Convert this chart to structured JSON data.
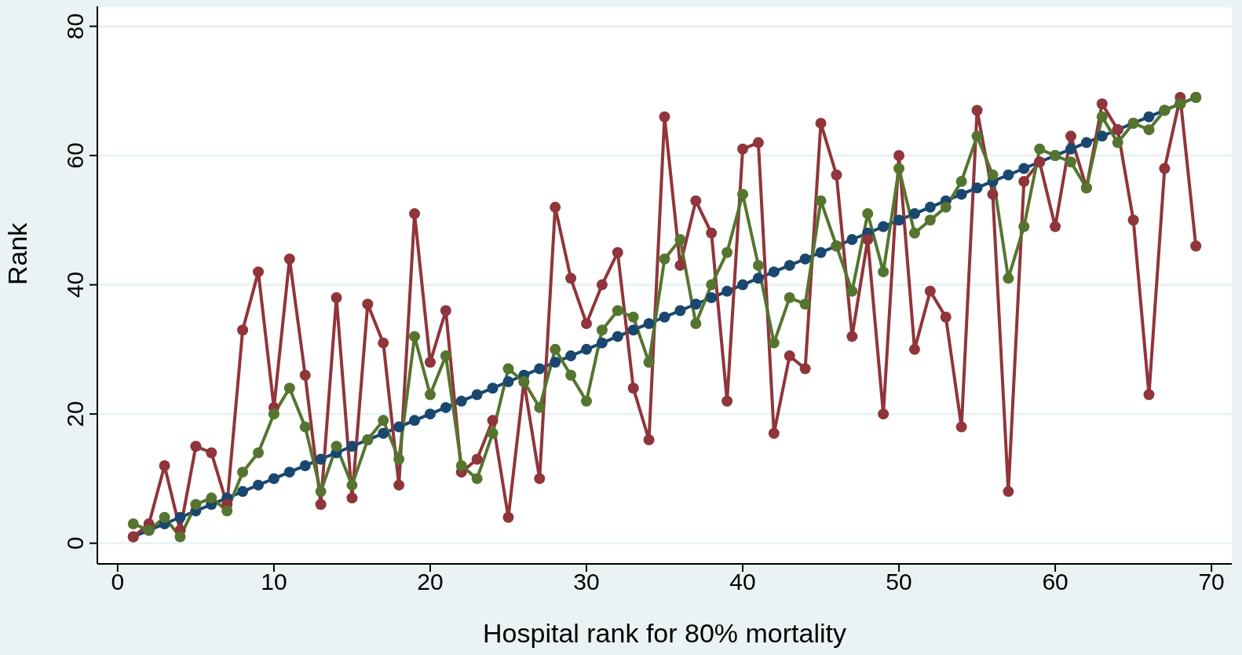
{
  "chart_data": {
    "type": "line",
    "xlabel": "Hospital rank for 80% mortality",
    "ylabel": "Rank",
    "x": [
      1,
      2,
      3,
      4,
      5,
      6,
      7,
      8,
      9,
      10,
      11,
      12,
      13,
      14,
      15,
      16,
      17,
      18,
      19,
      20,
      21,
      22,
      23,
      24,
      25,
      26,
      27,
      28,
      29,
      30,
      31,
      32,
      33,
      34,
      35,
      36,
      37,
      38,
      39,
      40,
      41,
      42,
      43,
      44,
      45,
      46,
      47,
      48,
      49,
      50,
      51,
      52,
      53,
      54,
      55,
      56,
      57,
      58,
      59,
      60,
      61,
      62,
      63,
      64,
      65,
      66,
      67,
      68,
      69
    ],
    "series": [
      {
        "color": "#1a476f",
        "values": [
          1,
          2,
          3,
          4,
          5,
          6,
          7,
          8,
          9,
          10,
          11,
          12,
          13,
          14,
          15,
          16,
          17,
          18,
          19,
          20,
          21,
          22,
          23,
          24,
          25,
          26,
          27,
          28,
          29,
          30,
          31,
          32,
          33,
          34,
          35,
          36,
          37,
          38,
          39,
          40,
          41,
          42,
          43,
          44,
          45,
          46,
          47,
          48,
          49,
          50,
          51,
          52,
          53,
          54,
          55,
          56,
          57,
          58,
          59,
          60,
          61,
          62,
          63,
          64,
          65,
          66,
          67,
          68,
          69
        ]
      },
      {
        "color": "#90353b",
        "values": [
          1,
          3,
          12,
          2,
          15,
          14,
          6,
          33,
          42,
          21,
          44,
          26,
          6,
          38,
          7,
          37,
          31,
          9,
          51,
          28,
          36,
          11,
          13,
          19,
          4,
          25,
          10,
          52,
          41,
          34,
          40,
          45,
          24,
          16,
          66,
          43,
          53,
          48,
          22,
          61,
          62,
          17,
          29,
          27,
          65,
          57,
          32,
          47,
          20,
          60,
          30,
          39,
          35,
          18,
          67,
          54,
          8,
          56,
          59,
          49,
          63,
          55,
          68,
          64,
          50,
          23,
          58,
          69,
          46
        ]
      },
      {
        "color": "#55752f",
        "values": [
          3,
          2,
          4,
          1,
          6,
          7,
          5,
          11,
          14,
          20,
          24,
          18,
          8,
          15,
          9,
          16,
          19,
          13,
          32,
          23,
          29,
          12,
          10,
          17,
          27,
          25,
          21,
          30,
          26,
          22,
          33,
          36,
          35,
          28,
          44,
          47,
          34,
          40,
          45,
          54,
          43,
          31,
          38,
          37,
          53,
          46,
          39,
          51,
          42,
          58,
          48,
          50,
          52,
          56,
          63,
          57,
          41,
          49,
          61,
          60,
          59,
          55,
          66,
          62,
          65,
          64,
          67,
          68,
          69
        ]
      }
    ],
    "xlim": [
      -1.3,
      71.3
    ],
    "xticks": [
      0,
      10,
      20,
      30,
      40,
      50,
      60,
      70
    ],
    "ylim": [
      -3.2,
      83.1
    ],
    "yticks": [
      0,
      20,
      40,
      60,
      80
    ],
    "grid": "y",
    "marker": "circle",
    "line_style": "solid"
  }
}
